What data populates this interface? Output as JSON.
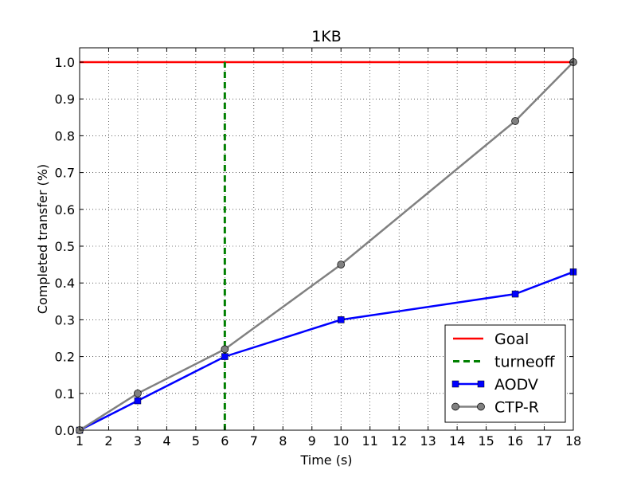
{
  "chart_data": {
    "type": "line",
    "title": "1KB",
    "xlabel": "Time (s)",
    "ylabel": "Completed transfer (%)",
    "xlim": [
      1,
      18
    ],
    "ylim": [
      0.0,
      1.0
    ],
    "xticks": [
      1,
      2,
      3,
      4,
      5,
      6,
      7,
      8,
      9,
      10,
      11,
      12,
      13,
      14,
      15,
      16,
      17,
      18
    ],
    "yticks": [
      "0.0",
      "0.1",
      "0.2",
      "0.3",
      "0.4",
      "0.5",
      "0.6",
      "0.7",
      "0.8",
      "0.9",
      "1.0"
    ],
    "grid": true,
    "legend_position": "lower-right",
    "series": [
      {
        "name": "Goal",
        "style": "solid",
        "marker": "none",
        "color": "#ff0000",
        "x": [
          1,
          18
        ],
        "y": [
          1.0,
          1.0
        ]
      },
      {
        "name": "turneoff",
        "style": "dashed",
        "marker": "none",
        "color": "#008000",
        "x": [
          6,
          6
        ],
        "y": [
          0.0,
          1.0
        ]
      },
      {
        "name": "AODV",
        "style": "solid",
        "marker": "square",
        "color": "#0000ff",
        "x": [
          1,
          3,
          6,
          10,
          16,
          18
        ],
        "y": [
          0.0,
          0.08,
          0.2,
          0.3,
          0.37,
          0.43
        ]
      },
      {
        "name": "CTP-R",
        "style": "solid",
        "marker": "circle",
        "color": "#808080",
        "marker_fill": "#808080",
        "x": [
          1,
          3,
          6,
          10,
          16,
          18
        ],
        "y": [
          0.0,
          0.1,
          0.22,
          0.45,
          0.84,
          1.0
        ]
      }
    ]
  }
}
